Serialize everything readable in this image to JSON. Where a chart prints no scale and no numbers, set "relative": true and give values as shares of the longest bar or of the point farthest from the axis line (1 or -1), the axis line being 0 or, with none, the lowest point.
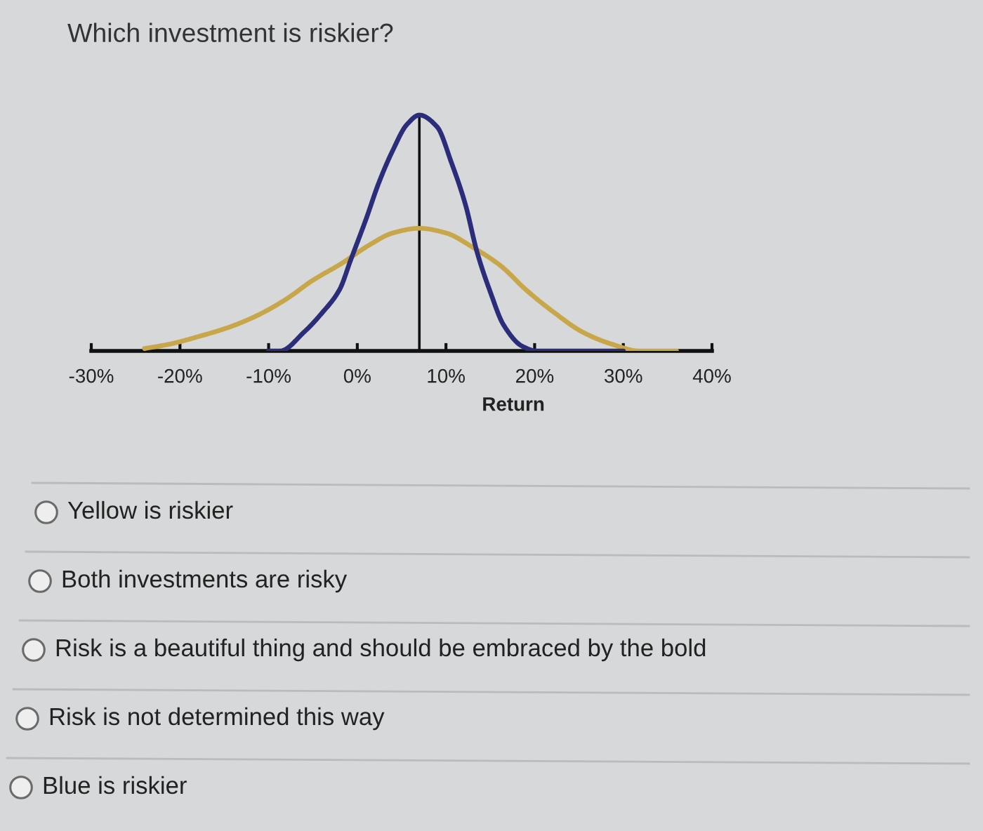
{
  "chart_data": {
    "type": "line",
    "relative": true,
    "title": "Which investment is riskier?",
    "xlabel": "Return",
    "xlim": [
      -30,
      40
    ],
    "xticks": [
      {
        "value": -30,
        "label": "-30%"
      },
      {
        "value": -20,
        "label": "-20%"
      },
      {
        "value": -10,
        "label": "-10%"
      },
      {
        "value": 0,
        "label": "0%"
      },
      {
        "value": 10,
        "label": "10%"
      },
      {
        "value": 20,
        "label": "20%"
      },
      {
        "value": 30,
        "label": "30%"
      },
      {
        "value": 40,
        "label": "40%"
      }
    ],
    "series": [
      {
        "color": "#c8a74a",
        "x": [
          -24,
          -21,
          -18,
          -14.5,
          -11.3,
          -8,
          -5,
          -1.8,
          1.4,
          4,
          7,
          10,
          13,
          16.2,
          19,
          22.3,
          25.4,
          28.6,
          31.8,
          36
        ],
        "values": [
          0.01,
          0.03,
          0.06,
          0.1,
          0.15,
          0.22,
          0.3,
          0.37,
          0.45,
          0.5,
          0.52,
          0.5,
          0.44,
          0.36,
          0.26,
          0.16,
          0.08,
          0.03,
          0,
          0
        ]
      },
      {
        "color": "#2b2d7a",
        "x": [
          -10,
          -8.7,
          -6,
          -4,
          -2,
          -0.7,
          1,
          2.4,
          4,
          5.6,
          7,
          9,
          10.6,
          12.2,
          13.5,
          15,
          16.5,
          18.6,
          20.2,
          30
        ],
        "values": [
          0,
          0,
          0.08,
          0.16,
          0.26,
          0.39,
          0.56,
          0.71,
          0.85,
          0.96,
          1,
          0.95,
          0.8,
          0.62,
          0.42,
          0.25,
          0.11,
          0.02,
          0,
          0
        ]
      }
    ],
    "ref_lines": [
      {
        "axis": "x",
        "value": 7,
        "color": "#111111"
      }
    ],
    "annotations": [
      "Yellow is riskier",
      "Both investments are risky",
      "Risk is a beautiful thing and should be embraced by the bold",
      "Risk is not determined this way",
      "Blue is riskier"
    ]
  }
}
